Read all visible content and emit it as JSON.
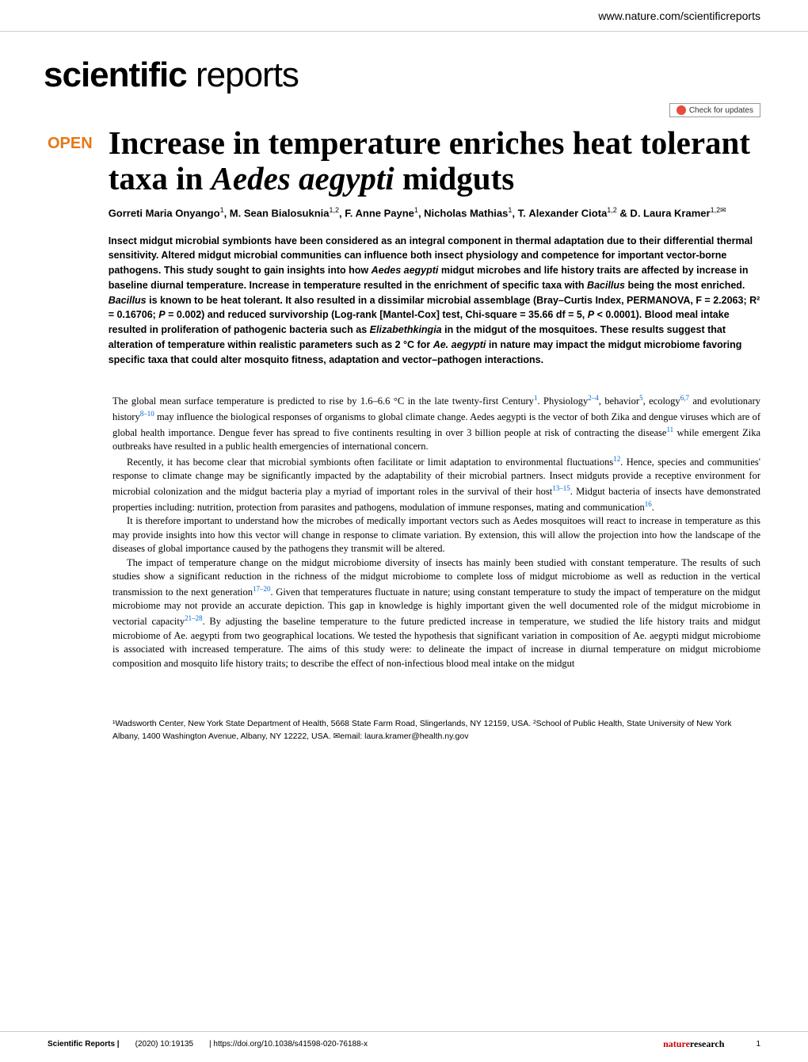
{
  "header": {
    "url": "www.nature.com/scientificreports"
  },
  "logo": {
    "bold": "scientific",
    "light": " reports"
  },
  "updates": {
    "label": "Check for updates"
  },
  "article": {
    "open_badge": "OPEN",
    "title": "Increase in temperature enriches heat tolerant taxa in Aedes aegypti midguts",
    "authors_html": "Gorreti Maria Onyango<sup>1</sup>, M. Sean Bialosuknia<sup>1,2</sup>, F. Anne Payne<sup>1</sup>, Nicholas Mathias<sup>1</sup>, T. Alexander Ciota<sup>1,2</sup> & D. Laura Kramer<sup>1,2✉</sup>",
    "abstract": "Insect midgut microbial symbionts have been considered as an integral component in thermal adaptation due to their differential thermal sensitivity. Altered midgut microbial communities can influence both insect physiology and competence for important vector-borne pathogens. This study sought to gain insights into how Aedes aegypti midgut microbes and life history traits are affected by increase in baseline diurnal temperature. Increase in temperature resulted in the enrichment of specific taxa with Bacillus being the most enriched. Bacillus is known to be heat tolerant. It also resulted in a dissimilar microbial assemblage (Bray–Curtis Index, PERMANOVA, F = 2.2063; R² = 0.16706; P = 0.002) and reduced survivorship (Log-rank [Mantel-Cox] test, Chi-square = 35.66 df = 5, P < 0.0001). Blood meal intake resulted in proliferation of pathogenic bacteria such as Elizabethkingia in the midgut of the mosquitoes. These results suggest that alteration of temperature within realistic parameters such as 2 °C for Ae. aegypti in nature may impact the midgut microbiome favoring specific taxa that could alter mosquito fitness, adaptation and vector–pathogen interactions."
  },
  "body": {
    "p1": "The global mean surface temperature is predicted to rise by 1.6–6.6 °C in the late twenty-first Century",
    "p1_refs": "1",
    "p1_end": ". Physiology",
    "p1_refs2": "2–4",
    "p1_cont1": ", behavior",
    "p1_refs3": "5",
    "p1_cont2": ", ecology",
    "p1_refs4": "6,7",
    "p1_cont3": " and evolutionary history",
    "p1_refs5": "8–10",
    "p1_cont4": " may influence the biological responses of organisms to global climate change. Aedes aegypti is the vector of both Zika and dengue viruses which are of global health importance. Dengue fever has spread to five continents resulting in over 3 billion people at risk of contracting the disease",
    "p1_refs6": "11",
    "p1_cont5": " while emergent Zika outbreaks have resulted in a public health emergencies of international concern.",
    "p2": "Recently, it has become clear that microbial symbionts often facilitate or limit adaptation to environmental fluctuations",
    "p2_refs": "12",
    "p2_cont1": ". Hence, species and communities' response to climate change may be significantly impacted by the adaptability of their microbial partners. Insect midguts provide a receptive environment for microbial colonization and the midgut bacteria play a myriad of important roles in the survival of their host",
    "p2_refs2": "13–15",
    "p2_cont2": ". Midgut bacteria of insects have demonstrated properties including: nutrition, protection from parasites and pathogens, modulation of immune responses, mating and communication",
    "p2_refs3": "16",
    "p2_cont3": ".",
    "p3": "It is therefore important to understand how the microbes of medically important vectors such as Aedes mosquitoes will react to increase in temperature as this may provide insights into how this vector will change in response to climate variation. By extension, this will allow the projection into how the landscape of the diseases of global importance caused by the pathogens they transmit will be altered.",
    "p4": "The impact of temperature change on the midgut microbiome diversity of insects has mainly been studied with constant temperature. The results of such studies show a significant reduction in the richness of the midgut microbiome to complete loss of midgut microbiome as well as reduction in the vertical transmission to the next generation",
    "p4_refs": "17–20",
    "p4_cont1": ". Given that temperatures fluctuate in nature; using constant temperature to study the impact of temperature on the midgut microbiome may not provide an accurate depiction. This gap in knowledge is highly important given the well documented role of the midgut microbiome in vectorial capacity",
    "p4_refs2": "21–28",
    "p4_cont2": ". By adjusting the baseline temperature to the future predicted increase in temperature, we studied the life history traits and midgut microbiome of Ae. aegypti from two geographical locations. We tested the hypothesis that significant variation in composition of Ae. aegypti midgut microbiome is associated with increased temperature. The aims of this study were: to delineate the impact of increase in diurnal temperature on midgut microbiome composition and mosquito life history traits; to describe the effect of non-infectious blood meal intake on the midgut"
  },
  "affiliations": {
    "text": "¹Wadsworth Center, New York State Department of Health, 5668 State Farm Road, Slingerlands, NY 12159, USA. ²School of Public Health, State University of New York Albany, 1400 Washington Avenue, Albany, NY 12222, USA. ✉email: laura.kramer@health.ny.gov"
  },
  "footer": {
    "journal": "Scientific Reports |",
    "citation": "(2020) 10:19135",
    "doi": "| https://doi.org/10.1038/s41598-020-76188-x",
    "publisher_prefix": "nature",
    "publisher_suffix": "research",
    "page": "1"
  }
}
